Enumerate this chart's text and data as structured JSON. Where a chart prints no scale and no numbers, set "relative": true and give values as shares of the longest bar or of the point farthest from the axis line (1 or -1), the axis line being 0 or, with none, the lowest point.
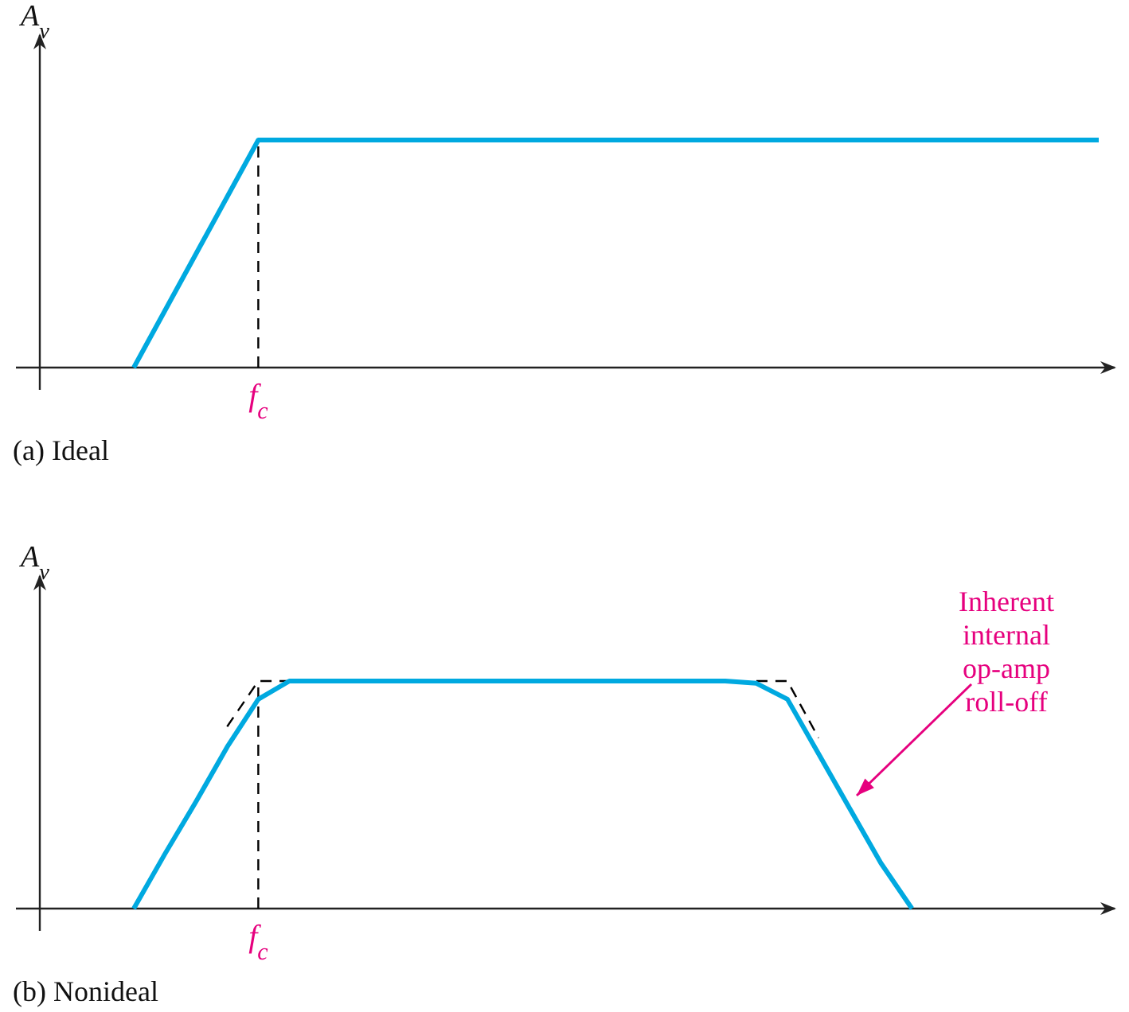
{
  "chart_data": [
    {
      "type": "line",
      "title": "(a)  Ideal",
      "ylabel": "A$_{v}$",
      "relative": true,
      "categories": [
        null,
        null,
        null,
        null,
        null,
        null,
        null,
        null,
        null,
        null,
        null,
        null,
        null,
        null,
        null,
        null,
        null,
        null,
        null,
        null,
        null,
        null,
        null,
        null,
        null,
        null,
        null,
        null,
        null,
        null,
        null,
        null
      ],
      "series": [
        {
          "color": "#00a9e0",
          "values": [
            0,
            0.25,
            0.5,
            0.75,
            1,
            1,
            1,
            1,
            1,
            1,
            1,
            1,
            1,
            1,
            1,
            1,
            1,
            1,
            1,
            1,
            1,
            1,
            1,
            1,
            1,
            1,
            1,
            1,
            1,
            1,
            1,
            1
          ]
        }
      ],
      "annotations": [
        "f$_{c}$"
      ]
    },
    {
      "type": "line",
      "title": "(b)  Nonideal",
      "ylabel": "A$_{v}$",
      "relative": true,
      "categories": [
        null,
        null,
        null,
        null,
        null,
        null,
        null,
        null,
        null,
        null,
        null,
        null,
        null,
        null,
        null,
        null,
        null,
        null,
        null,
        null,
        null,
        null,
        null,
        null,
        null,
        null,
        null,
        null,
        null,
        null,
        null,
        null
      ],
      "series": [
        {
          "color": "#000000",
          "line_style": "dashed",
          "values": [
            null,
            null,
            null,
            0.8,
            1,
            1,
            null,
            null,
            null,
            null,
            null,
            null,
            null,
            null,
            null,
            null,
            null,
            null,
            null,
            null,
            1,
            1,
            0.75,
            null,
            null,
            null,
            null,
            null,
            null,
            null,
            null,
            null
          ]
        },
        {
          "color": "#00a9e0",
          "values": [
            0,
            0.24,
            0.47,
            0.71,
            0.92,
            1,
            1,
            1,
            1,
            1,
            1,
            1,
            1,
            1,
            1,
            1,
            1,
            1,
            1,
            1,
            0.99,
            0.92,
            0.68,
            0.44,
            0.2,
            0,
            null,
            null,
            null,
            null,
            null,
            null
          ]
        }
      ],
      "annotations": [
        "f$_{c}$",
        "Inherent\ninternal\nop-amp\nroll-off"
      ]
    }
  ]
}
